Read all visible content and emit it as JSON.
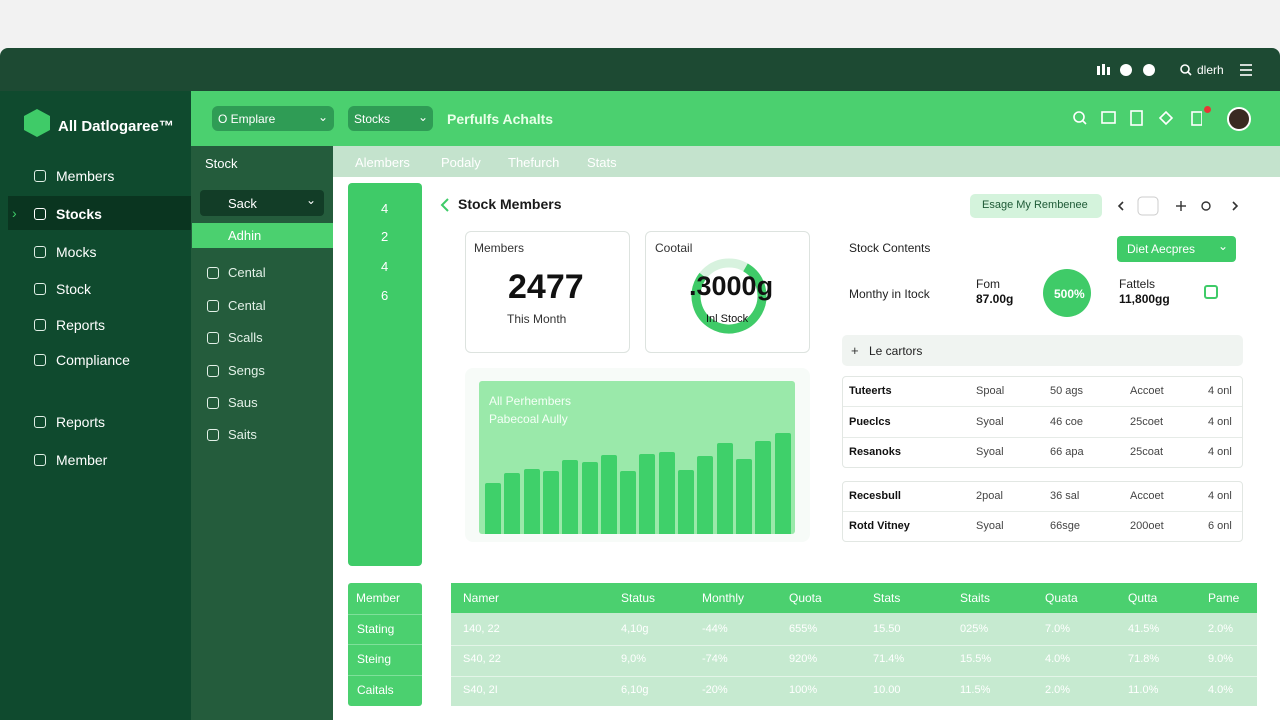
{
  "topbar": {
    "user": "dlerh"
  },
  "logo": "All Datlogaree™",
  "nav": [
    "Members",
    "Stocks",
    "Mocks",
    "Stock",
    "Reports",
    "Compliance",
    "Reports",
    "Member"
  ],
  "header": {
    "dropdowns": [
      "O Emplare",
      "Stocks"
    ],
    "title": "Perfulfs Achalts"
  },
  "subnav": {
    "title": "Stock",
    "dropdown": "Sack",
    "active": "Adhin",
    "items": [
      "Cental",
      "Cental",
      "Scalls",
      "Sengs",
      "Saus",
      "Saits"
    ]
  },
  "tabs": [
    "Alembers",
    "Podaly",
    "Thefurch",
    "Stats"
  ],
  "side_numbers": [
    "4",
    "2",
    "4",
    "6"
  ],
  "panel": {
    "title": "Stock Members",
    "button": "Esage My Rembenee"
  },
  "members_card": {
    "label": "Members",
    "value": "2477",
    "caption": "This Month"
  },
  "cootail_card": {
    "label": "Cootail",
    "value": ".3000g",
    "caption": "Inl Stock"
  },
  "chart": {
    "title": "All Perhembers",
    "subtitle": "Pabecoal Aully",
    "bars": [
      51,
      61,
      65,
      63,
      74,
      72,
      79,
      63,
      80,
      82,
      64,
      78,
      91,
      75,
      93,
      101
    ]
  },
  "contents": {
    "title": "Stock Contents",
    "button": "Diet Aecpres",
    "label": "Monthy in Itock",
    "from_label": "Fom",
    "from_value": "87.00g",
    "badge": "500%",
    "fattels_label": "Fattels",
    "fattels_value": "11,800gg"
  },
  "filter": "Le cartors",
  "table1": {
    "rows": [
      [
        "Tuteerts",
        "Spoal",
        "50 ags",
        "Accoet",
        "4 onl"
      ],
      [
        "Pueclcs",
        "Syoal",
        "46 coe",
        "25coet",
        "4 onl"
      ],
      [
        "Resanoks",
        "Syoal",
        "66 apa",
        "25coat",
        "4 onl"
      ]
    ]
  },
  "table2": {
    "rows": [
      [
        "Recesbull",
        "2poal",
        "36 sal",
        "Accoet",
        "4 onl"
      ],
      [
        "Rotd Vitney",
        "Syoal",
        "66sge",
        "200oet",
        "6 onl"
      ]
    ]
  },
  "left_table": {
    "header": "Member",
    "rows": [
      "Stating",
      "Steing",
      "Caitals"
    ]
  },
  "main_table": {
    "columns": [
      "Namer",
      "Status",
      "Monthly",
      "Quota",
      "Stats",
      "Staits",
      "Quata",
      "Qutta",
      "Pame"
    ],
    "rows": [
      [
        "140, 22",
        "4,10g",
        "-44%",
        "655%",
        "15.50",
        "025%",
        "7.0%",
        "41.5%",
        "2.0%"
      ],
      [
        "S40, 22",
        "9,0%",
        "-74%",
        "920%",
        "71.4%",
        "15.5%",
        "4.0%",
        "71.8%",
        "9.0%"
      ],
      [
        "S40, 2I",
        "6,10g",
        "-20%",
        "100%",
        "10.00",
        "11.5%",
        "2.0%",
        "11.0%",
        "4.0%"
      ]
    ]
  }
}
